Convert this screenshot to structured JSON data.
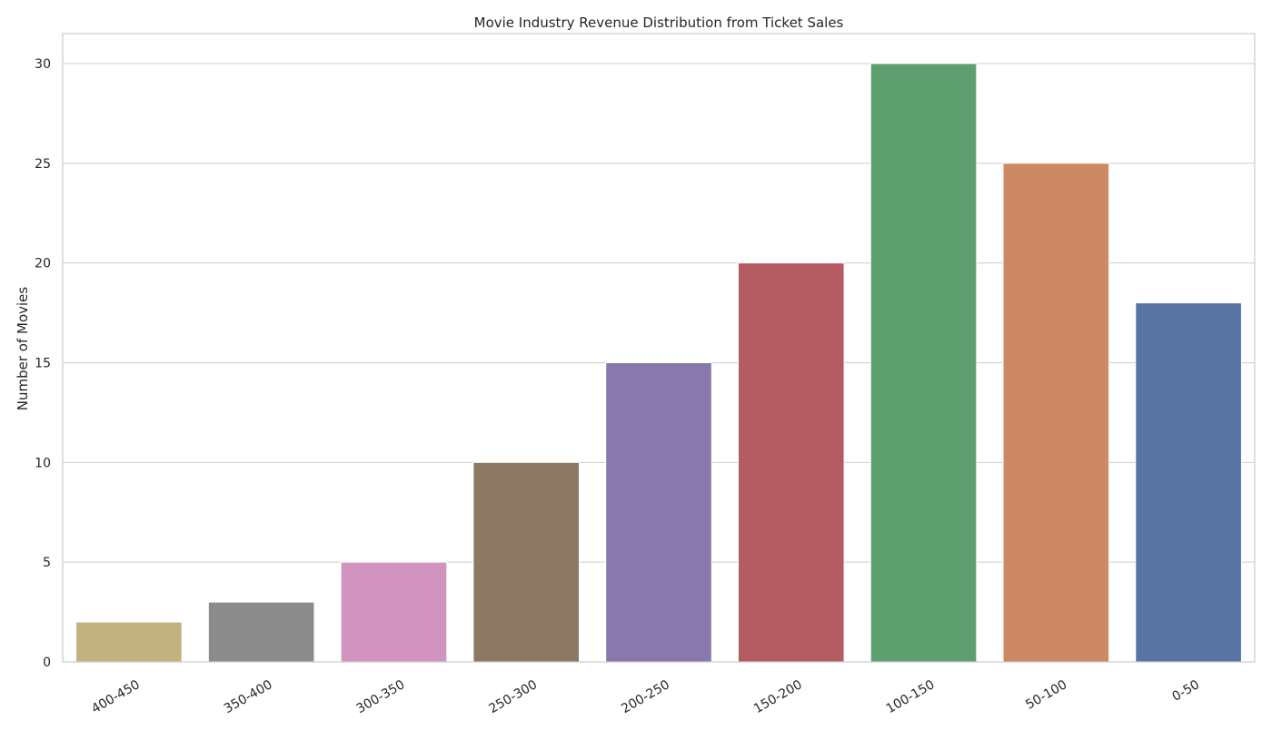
{
  "chart_data": {
    "type": "bar",
    "title": "Movie Industry Revenue Distribution from Ticket Sales",
    "xlabel": "",
    "ylabel": "Number of Movies",
    "categories": [
      "400-450",
      "350-400",
      "300-350",
      "250-300",
      "200-250",
      "150-200",
      "100-150",
      "50-100",
      "0-50"
    ],
    "values": [
      2,
      3,
      5,
      10,
      15,
      20,
      30,
      25,
      18
    ],
    "colors": [
      "#c1b37f",
      "#8c8c8c",
      "#d094bf",
      "#8c7863",
      "#8779ab",
      "#b55c62",
      "#5e9f6f",
      "#cd8864",
      "#5874a2"
    ],
    "y_ticks": [
      0,
      5,
      10,
      15,
      20,
      25,
      30
    ],
    "ylim": [
      0,
      31.5
    ],
    "grid": true,
    "legend": "none"
  }
}
